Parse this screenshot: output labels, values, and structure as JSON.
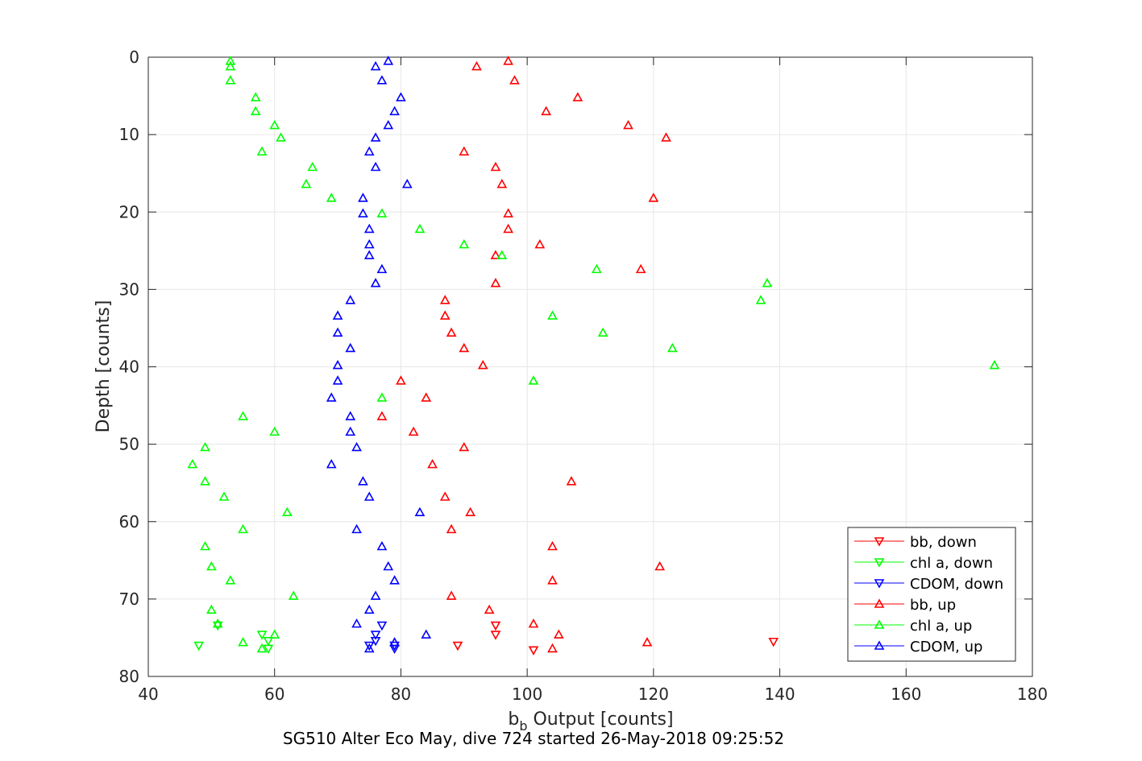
{
  "chart_data": {
    "type": "scatter",
    "title": "",
    "xlabel": {
      "main": "b",
      "sub": "b",
      "rest": " Output [counts]"
    },
    "ylabel": "Depth [counts]",
    "caption": "SG510 Alter Eco May, dive 724 started 26-May-2018 09:25:52",
    "xlim": [
      40,
      180
    ],
    "ylim": [
      0,
      80
    ],
    "y_reversed": true,
    "grid": true,
    "legend_position": "bottom-right",
    "x_ticks": [
      "40",
      "60",
      "80",
      "100",
      "120",
      "140",
      "160",
      "180"
    ],
    "y_ticks": [
      "0",
      "10",
      "20",
      "30",
      "40",
      "50",
      "60",
      "70",
      "80"
    ],
    "series": [
      {
        "name": "bb, down",
        "color": "#ff0000",
        "marker": "triangle-down",
        "points": [
          [
            139,
            75.5
          ],
          [
            89,
            76.0
          ],
          [
            101,
            76.6
          ],
          [
            95,
            73.4
          ],
          [
            95,
            74.6
          ]
        ]
      },
      {
        "name": "chl a, down",
        "color": "#00ff00",
        "marker": "triangle-down",
        "points": [
          [
            48,
            76.0
          ],
          [
            58,
            74.6
          ],
          [
            59,
            75.4
          ],
          [
            59,
            76.4
          ],
          [
            51,
            73.4
          ]
        ]
      },
      {
        "name": "CDOM, down",
        "color": "#0000ff",
        "marker": "triangle-down",
        "points": [
          [
            79,
            76.4
          ],
          [
            75,
            76.0
          ],
          [
            76,
            75.4
          ],
          [
            76,
            74.6
          ],
          [
            77,
            73.4
          ],
          [
            79,
            76.0
          ]
        ]
      },
      {
        "name": "bb, up",
        "color": "#ff0000",
        "marker": "triangle-up",
        "points": [
          [
            97,
            0.5
          ],
          [
            92,
            1.2
          ],
          [
            98,
            3.0
          ],
          [
            108,
            5.2
          ],
          [
            103,
            7.0
          ],
          [
            116,
            8.8
          ],
          [
            122,
            10.4
          ],
          [
            90,
            12.2
          ],
          [
            95,
            14.2
          ],
          [
            96,
            16.4
          ],
          [
            120,
            18.2
          ],
          [
            97,
            20.2
          ],
          [
            97,
            22.2
          ],
          [
            102,
            24.2
          ],
          [
            95,
            25.6
          ],
          [
            118,
            27.4
          ],
          [
            95,
            29.2
          ],
          [
            87,
            31.4
          ],
          [
            87,
            33.4
          ],
          [
            88,
            35.6
          ],
          [
            90,
            37.6
          ],
          [
            93,
            39.8
          ],
          [
            80,
            41.8
          ],
          [
            84,
            44.0
          ],
          [
            77,
            46.4
          ],
          [
            82,
            48.4
          ],
          [
            90,
            50.4
          ],
          [
            85,
            52.6
          ],
          [
            107,
            54.8
          ],
          [
            87,
            56.8
          ],
          [
            91,
            58.8
          ],
          [
            88,
            61.0
          ],
          [
            104,
            63.2
          ],
          [
            121,
            65.8
          ],
          [
            104,
            67.6
          ],
          [
            88,
            69.6
          ],
          [
            94,
            71.4
          ],
          [
            101,
            73.2
          ],
          [
            105,
            74.6
          ],
          [
            119,
            75.6
          ],
          [
            104,
            76.4
          ]
        ]
      },
      {
        "name": "chl a, up",
        "color": "#00ff00",
        "marker": "triangle-up",
        "points": [
          [
            53,
            0.5
          ],
          [
            53,
            1.2
          ],
          [
            53,
            3.0
          ],
          [
            57,
            5.2
          ],
          [
            57,
            7.0
          ],
          [
            60,
            8.8
          ],
          [
            61,
            10.4
          ],
          [
            58,
            12.2
          ],
          [
            66,
            14.2
          ],
          [
            65,
            16.4
          ],
          [
            69,
            18.2
          ],
          [
            77,
            20.2
          ],
          [
            83,
            22.2
          ],
          [
            90,
            24.2
          ],
          [
            96,
            25.6
          ],
          [
            111,
            27.4
          ],
          [
            138,
            29.2
          ],
          [
            137,
            31.4
          ],
          [
            104,
            33.4
          ],
          [
            112,
            35.6
          ],
          [
            123,
            37.6
          ],
          [
            174,
            39.8
          ],
          [
            101,
            41.8
          ],
          [
            77,
            44.0
          ],
          [
            55,
            46.4
          ],
          [
            60,
            48.4
          ],
          [
            49,
            50.4
          ],
          [
            47,
            52.6
          ],
          [
            49,
            54.8
          ],
          [
            52,
            56.8
          ],
          [
            62,
            58.8
          ],
          [
            55,
            61.0
          ],
          [
            49,
            63.2
          ],
          [
            50,
            65.8
          ],
          [
            53,
            67.6
          ],
          [
            63,
            69.6
          ],
          [
            50,
            71.4
          ],
          [
            51,
            73.2
          ],
          [
            60,
            74.6
          ],
          [
            55,
            75.6
          ],
          [
            58,
            76.4
          ]
        ]
      },
      {
        "name": "CDOM, up",
        "color": "#0000ff",
        "marker": "triangle-up",
        "points": [
          [
            78,
            0.5
          ],
          [
            76,
            1.2
          ],
          [
            77,
            3.0
          ],
          [
            80,
            5.2
          ],
          [
            79,
            7.0
          ],
          [
            78,
            8.8
          ],
          [
            76,
            10.4
          ],
          [
            75,
            12.2
          ],
          [
            76,
            14.2
          ],
          [
            81,
            16.4
          ],
          [
            74,
            18.2
          ],
          [
            74,
            20.2
          ],
          [
            75,
            22.2
          ],
          [
            75,
            24.2
          ],
          [
            75,
            25.6
          ],
          [
            77,
            27.4
          ],
          [
            76,
            29.2
          ],
          [
            72,
            31.4
          ],
          [
            70,
            33.4
          ],
          [
            70,
            35.6
          ],
          [
            72,
            37.6
          ],
          [
            70,
            39.8
          ],
          [
            70,
            41.8
          ],
          [
            69,
            44.0
          ],
          [
            72,
            46.4
          ],
          [
            72,
            48.4
          ],
          [
            73,
            50.4
          ],
          [
            69,
            52.6
          ],
          [
            74,
            54.8
          ],
          [
            75,
            56.8
          ],
          [
            83,
            58.8
          ],
          [
            73,
            61.0
          ],
          [
            77,
            63.2
          ],
          [
            78,
            65.8
          ],
          [
            79,
            67.6
          ],
          [
            76,
            69.6
          ],
          [
            75,
            71.4
          ],
          [
            73,
            73.2
          ],
          [
            84,
            74.6
          ],
          [
            79,
            75.6
          ],
          [
            75,
            76.4
          ]
        ]
      }
    ]
  }
}
